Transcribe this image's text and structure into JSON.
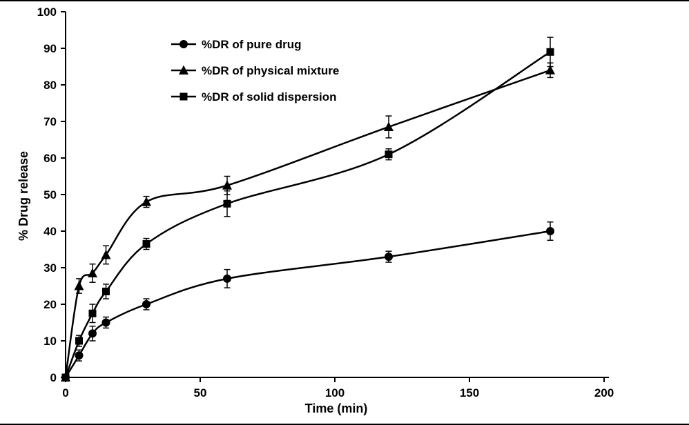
{
  "chart_data": {
    "type": "line",
    "title": "",
    "xlabel": "Time (min)",
    "ylabel": "% Drug release",
    "xlim": [
      0,
      200
    ],
    "ylim": [
      0,
      100
    ],
    "xticks": [
      0,
      50,
      100,
      150,
      200
    ],
    "yticks": [
      0,
      10,
      20,
      30,
      40,
      50,
      60,
      70,
      80,
      90,
      100
    ],
    "grid": false,
    "legend_position": "top-left-inside",
    "line_color": "#000000",
    "x": [
      0,
      5,
      10,
      15,
      30,
      60,
      120,
      180
    ],
    "series": [
      {
        "name": "%DR of pure drug",
        "marker": "circle",
        "values": [
          0,
          6,
          12,
          15,
          20,
          27,
          33,
          40
        ],
        "errors": [
          0,
          1.5,
          2,
          1.5,
          1.5,
          2.5,
          1.5,
          2.5
        ]
      },
      {
        "name": "%DR of physical mixture",
        "marker": "triangle",
        "values": [
          0,
          25,
          28.5,
          33.5,
          48,
          52.5,
          68.5,
          84
        ],
        "errors": [
          0,
          2,
          2.5,
          2.5,
          1.5,
          2.5,
          3,
          2
        ]
      },
      {
        "name": "%DR of solid dispersion",
        "marker": "square",
        "values": [
          0,
          10,
          17.5,
          23.5,
          36.5,
          47.5,
          61,
          89
        ],
        "errors": [
          0,
          1.5,
          2.5,
          2,
          1.5,
          3.5,
          1.5,
          4
        ]
      }
    ]
  }
}
